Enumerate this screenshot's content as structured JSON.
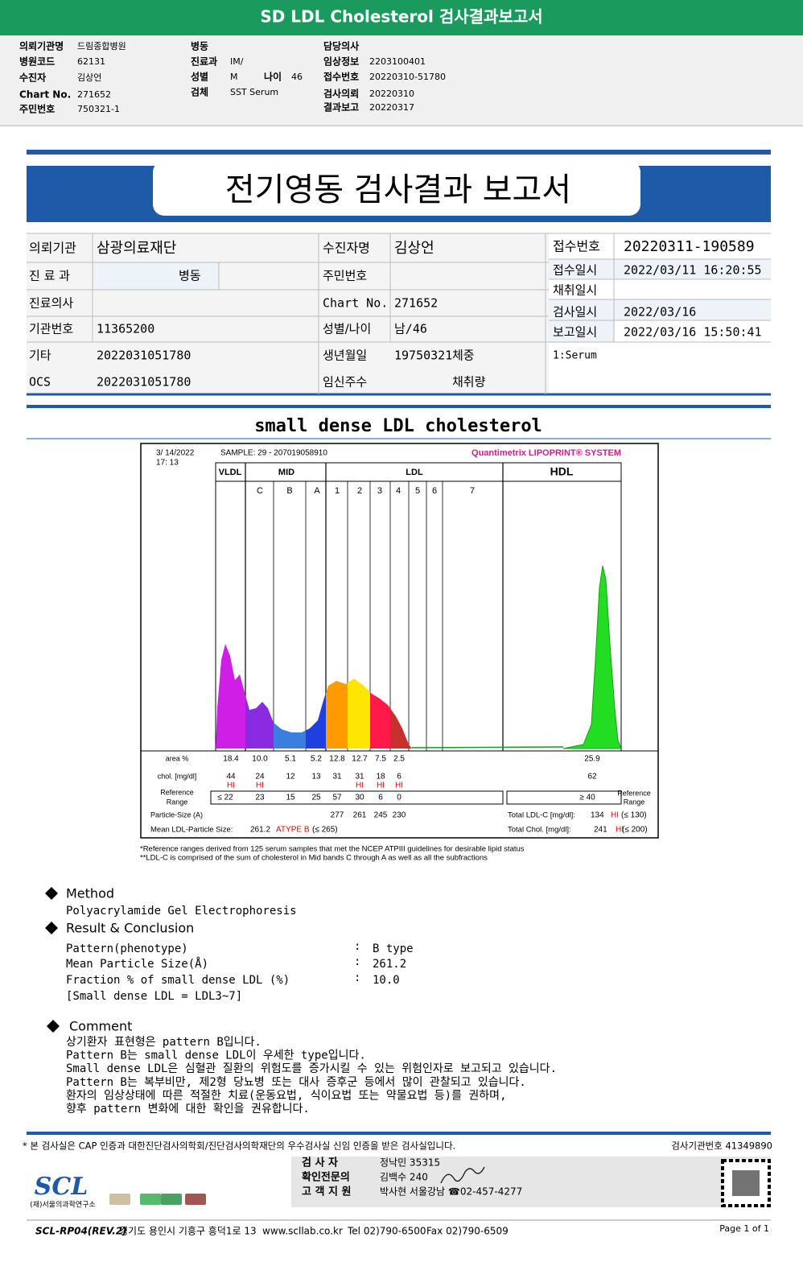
{
  "header": {
    "title": "SD LDL Cholesterol 검사결과보고서",
    "fields": [
      {
        "label": "의뢰기관명",
        "value": "드림종합병원"
      },
      {
        "label": "병원코드",
        "value": "62131"
      },
      {
        "label": "수진자",
        "value": "김상언"
      },
      {
        "label": "Chart No.",
        "value": "271652"
      },
      {
        "label": "주민번호",
        "value": "750321-1"
      },
      {
        "label": "병동"
      },
      {
        "label": "진료과",
        "value": "IM/"
      },
      {
        "label": "성별",
        "value": "M"
      },
      {
        "label": "나이",
        "value": "46"
      },
      {
        "label": "검체",
        "value": "SST Serum"
      },
      {
        "label": "담당의사"
      },
      {
        "label": "임상정보",
        "value": "2203100401"
      },
      {
        "label": "접수번호",
        "value": "20220310-51780"
      },
      {
        "label": "검사의뢰",
        "value": "20220310"
      },
      {
        "label": "결과보고",
        "value": "20220317"
      }
    ]
  },
  "report": {
    "title": "전기영동 검사결과 보고서",
    "fields": [
      {
        "label": "의뢰기관",
        "value": "삼광의료재단"
      },
      {
        "label": "수진자명",
        "value": "김상언"
      },
      {
        "label": "접수번호",
        "value": "20220311-190589"
      },
      {
        "label": "진 료 과",
        "value": "병동"
      },
      {
        "label": "주민번호"
      },
      {
        "label": "접수일시",
        "value": "2022/03/11 16:20:55"
      },
      {
        "label": "채취일시"
      },
      {
        "label": "진료의사"
      },
      {
        "label": "Chart No.",
        "value": "271652"
      },
      {
        "label": "검사일시",
        "value": "2022/03/16"
      },
      {
        "label": "기관번호",
        "value": "11365200"
      },
      {
        "label": "성별/나이",
        "value": "남/46"
      },
      {
        "label": "보고일시",
        "value": "2022/03/16 15:50:41"
      },
      {
        "label": "기타",
        "value": "2022031051780"
      },
      {
        "label": "생년월일",
        "value": "19750321"
      },
      {
        "label": "체중"
      },
      {
        "label": "OCS",
        "value": "2022031051780"
      },
      {
        "label": "임신주수"
      },
      {
        "label": "채취량"
      }
    ],
    "note": "1:Serum",
    "section_title": "small dense LDL cholesterol"
  },
  "electrophoresis": {
    "datetime": [
      "3/ 14/2022",
      "17: 13"
    ],
    "sample": "SAMPLE:   29 - 207019058910",
    "brand": "Quantimetrix LIPOPRINT® SYSTEM",
    "groups": [
      "VLDL",
      "MID",
      "LDL",
      "HDL"
    ],
    "bands": [
      "C",
      "B",
      "A",
      "1",
      "2",
      "3",
      "4",
      "5",
      "6",
      "7"
    ],
    "row_labels": {
      "area": "area %",
      "chol": "chol. [mg/dl]",
      "reference": [
        "Reference",
        "Range"
      ],
      "particle": "Particle-Size (A)"
    },
    "area": [
      "18.4",
      "10.0",
      "5.1",
      "5.2",
      "12.8",
      "12.7",
      "7.5",
      "2.5",
      "25.9"
    ],
    "chol": [
      "44",
      "24",
      "12",
      "13",
      "31",
      "31",
      "18",
      "6",
      "62"
    ],
    "flags": [
      "HI",
      "HI",
      null,
      null,
      null,
      "HI",
      "HI",
      "HI",
      null
    ],
    "reference": [
      "≤ 22",
      "23",
      "15",
      "25",
      "57",
      "30",
      "6",
      "0",
      "≥ 40"
    ],
    "hdl_reference_label": [
      "Reference",
      "Range"
    ],
    "particle_size": [
      "277",
      "261",
      "245",
      "230"
    ],
    "total_ldl": {
      "label": "Total LDL-C  [mg/dl]:",
      "value": "134",
      "flag": "HI",
      "limit": "(≤ 130)"
    },
    "mean_size": {
      "label": "Mean LDL-Particle Size:",
      "value": "261.2",
      "type": "ATYPE B",
      "limit": "(≤ 265)"
    },
    "total_chol": {
      "label": "Total Chol. [mg/dl]:",
      "value": "241",
      "flag": "HI",
      "limit": "(≤ 200)"
    },
    "footnotes": [
      "*Reference ranges derived from 125 serum samples that met the NCEP ATPIII guidelines for desirable lipid status",
      "**LDL-C is comprised of the sum of cholesterol in Mid bands C through A as well as all the subfractions"
    ]
  },
  "method": {
    "heading": "Method",
    "text": "Polyacrylamide Gel Electrophoresis"
  },
  "result": {
    "heading": "Result & Conclusion",
    "separator": ":",
    "rows": [
      {
        "label": "Pattern(phenotype)",
        "value": "B type"
      },
      {
        "label": "Mean Particle Size(Å)",
        "value": "261.2"
      },
      {
        "label": "Fraction % of small dense LDL (%)",
        "value": "10.0"
      }
    ],
    "note": "[Small dense LDL = LDL3~7]"
  },
  "comment": {
    "heading": "Comment",
    "lines": [
      "상기환자 표현형은 pattern B입니다.",
      "Pattern B는 small dense LDL이 우세한 type입니다.",
      "Small dense LDL은 심혈관 질환의 위험도를 증가시킬 수 있는 위험인자로 보고되고 있습니다.",
      "Pattern B는 복부비만, 제2형 당뇨병 또는 대사 증후군 등에서 많이 관찰되고 있습니다.",
      "환자의 임상상태에 따른 적절한 치료(운동요법, 식이요법 또는 약물요법 등)를 권하며,",
      "향후 pattern 변화에 대한 확인을 권유합니다."
    ]
  },
  "footer": {
    "certification": "* 본 검사실은 CAP 인증과 대한진단검사의학회/진단검사의학재단의 우수검사실 신임 인증을 받은 검사실입니다.",
    "lab_number": "검사기관번호 41349890",
    "signers": [
      {
        "role": "검 사 자",
        "name": "정낙민 35315"
      },
      {
        "role": "확인전문의",
        "name": "김백수 240"
      },
      {
        "role": "고 객 지 원",
        "name": "박사현 서울강남 ☎02-457-4277"
      }
    ],
    "logo": "SCL",
    "institute": "(재)서울의과학연구소",
    "form_id": "SCL-RP04(REV.2)",
    "address": "경기도 용인시 기흥구 흥덕1로 13",
    "website": "www.scllab.co.kr",
    "tel": "Tel 02)790-6500",
    "fax": "Fax 02)790-6509",
    "page": "Page 1 of 1"
  }
}
